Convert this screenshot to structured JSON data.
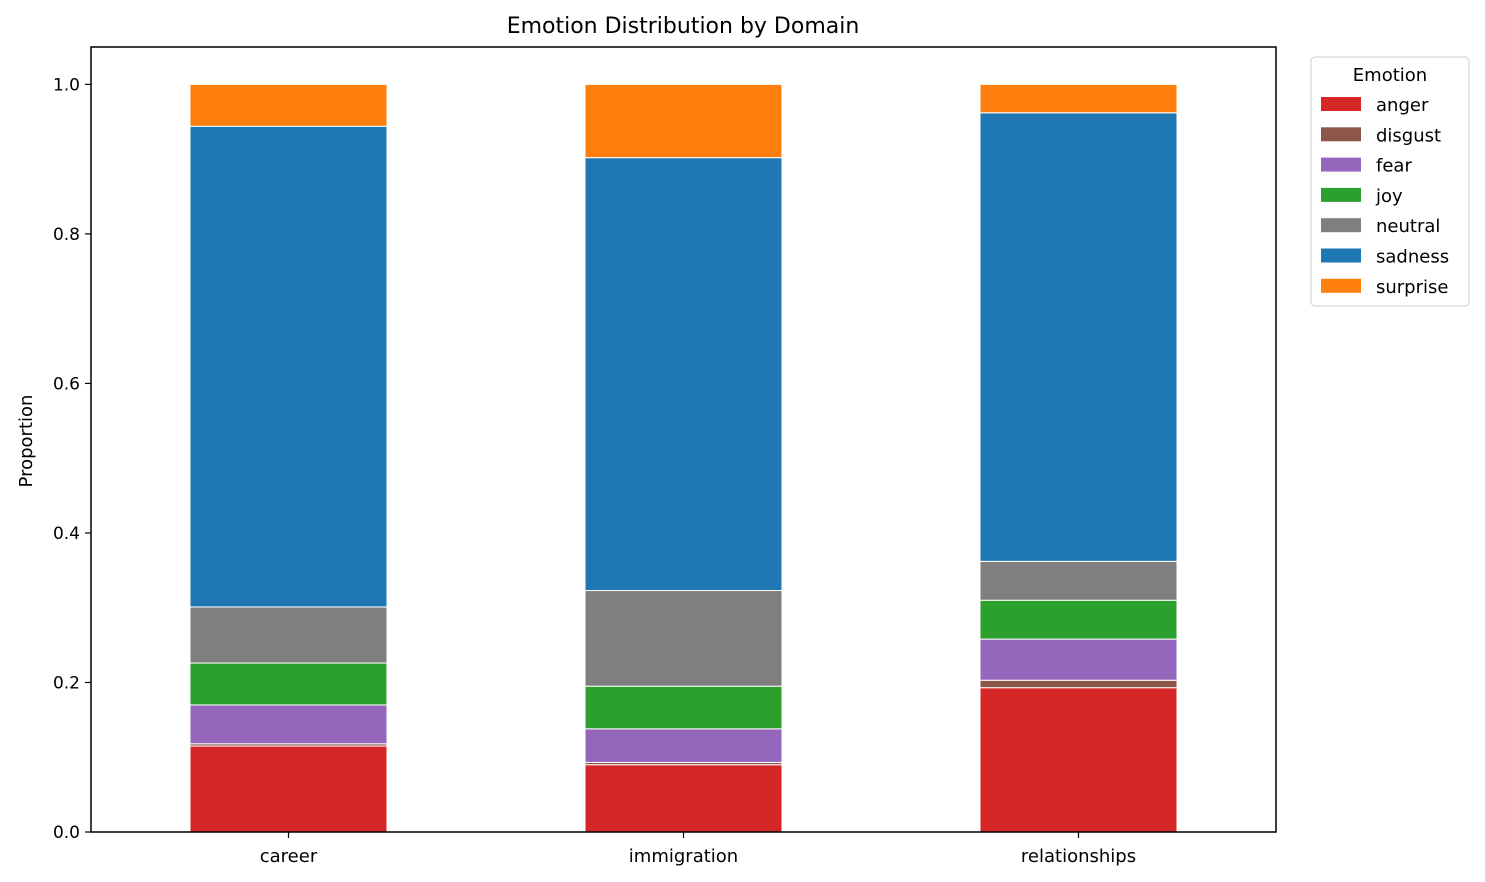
{
  "chart_data": {
    "type": "bar",
    "stacked": true,
    "title": "Emotion Distribution by Domain",
    "xlabel": "",
    "ylabel": "Proportion",
    "ylim": [
      0,
      1.05
    ],
    "yticks": [
      "0.0",
      "0.2",
      "0.4",
      "0.6",
      "0.8",
      "1.0"
    ],
    "categories": [
      "career",
      "immigration",
      "relationships"
    ],
    "legend": {
      "title": "Emotion",
      "placement": "upper-right-outside"
    },
    "series": [
      {
        "name": "anger",
        "color": "#d62728",
        "values": [
          0.115,
          0.09,
          0.193
        ]
      },
      {
        "name": "disgust",
        "color": "#8c564b",
        "values": [
          0.003,
          0.003,
          0.01
        ]
      },
      {
        "name": "fear",
        "color": "#9467bd",
        "values": [
          0.052,
          0.045,
          0.055
        ]
      },
      {
        "name": "joy",
        "color": "#2ca02c",
        "values": [
          0.056,
          0.057,
          0.052
        ]
      },
      {
        "name": "neutral",
        "color": "#7f7f7f",
        "values": [
          0.075,
          0.128,
          0.052
        ]
      },
      {
        "name": "sadness",
        "color": "#1f77b4",
        "values": [
          0.643,
          0.579,
          0.6
        ]
      },
      {
        "name": "surprise",
        "color": "#ff7f0e",
        "values": [
          0.056,
          0.098,
          0.038
        ]
      }
    ]
  }
}
